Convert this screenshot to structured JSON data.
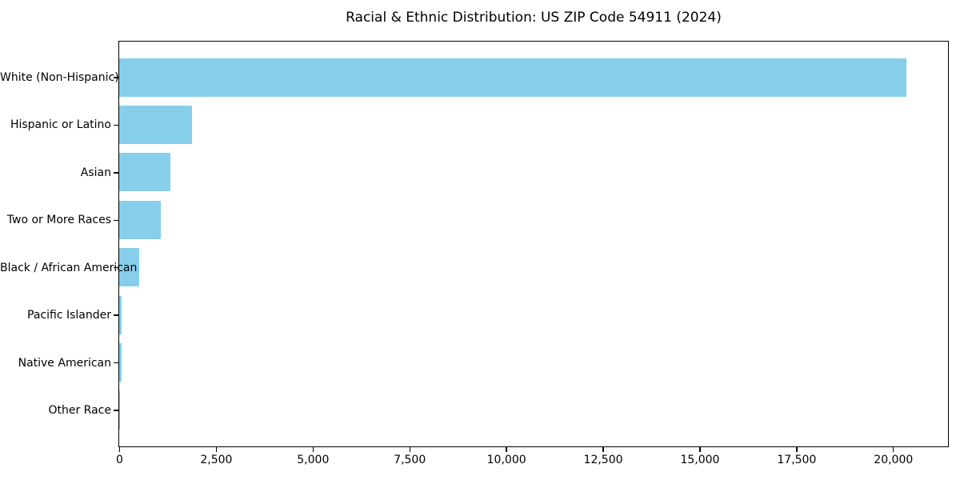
{
  "title": "Racial & Ethnic Distribution: US ZIP Code 54911 (2024)",
  "chart_data": {
    "type": "bar",
    "orientation": "horizontal",
    "title": "Racial & Ethnic Distribution: US ZIP Code 54911 (2024)",
    "categories": [
      "White (Non-Hispanic)",
      "Hispanic or Latino",
      "Asian",
      "Two or More Races",
      "Black / African American",
      "Pacific Islander",
      "Native American",
      "Other Race"
    ],
    "values": [
      20350,
      1880,
      1320,
      1070,
      510,
      60,
      70,
      10
    ],
    "bar_color": "#87CEEB",
    "xlabel": "",
    "ylabel": "",
    "xlim": [
      0,
      21400
    ],
    "xticks": [
      0,
      2500,
      5000,
      7500,
      10000,
      12500,
      15000,
      17500,
      20000
    ],
    "xtick_labels": [
      "0",
      "2,500",
      "5,000",
      "7,500",
      "10,000",
      "12,500",
      "15,000",
      "17,500",
      "20,000"
    ],
    "grid": false,
    "legend": null,
    "sorted": "descending"
  }
}
